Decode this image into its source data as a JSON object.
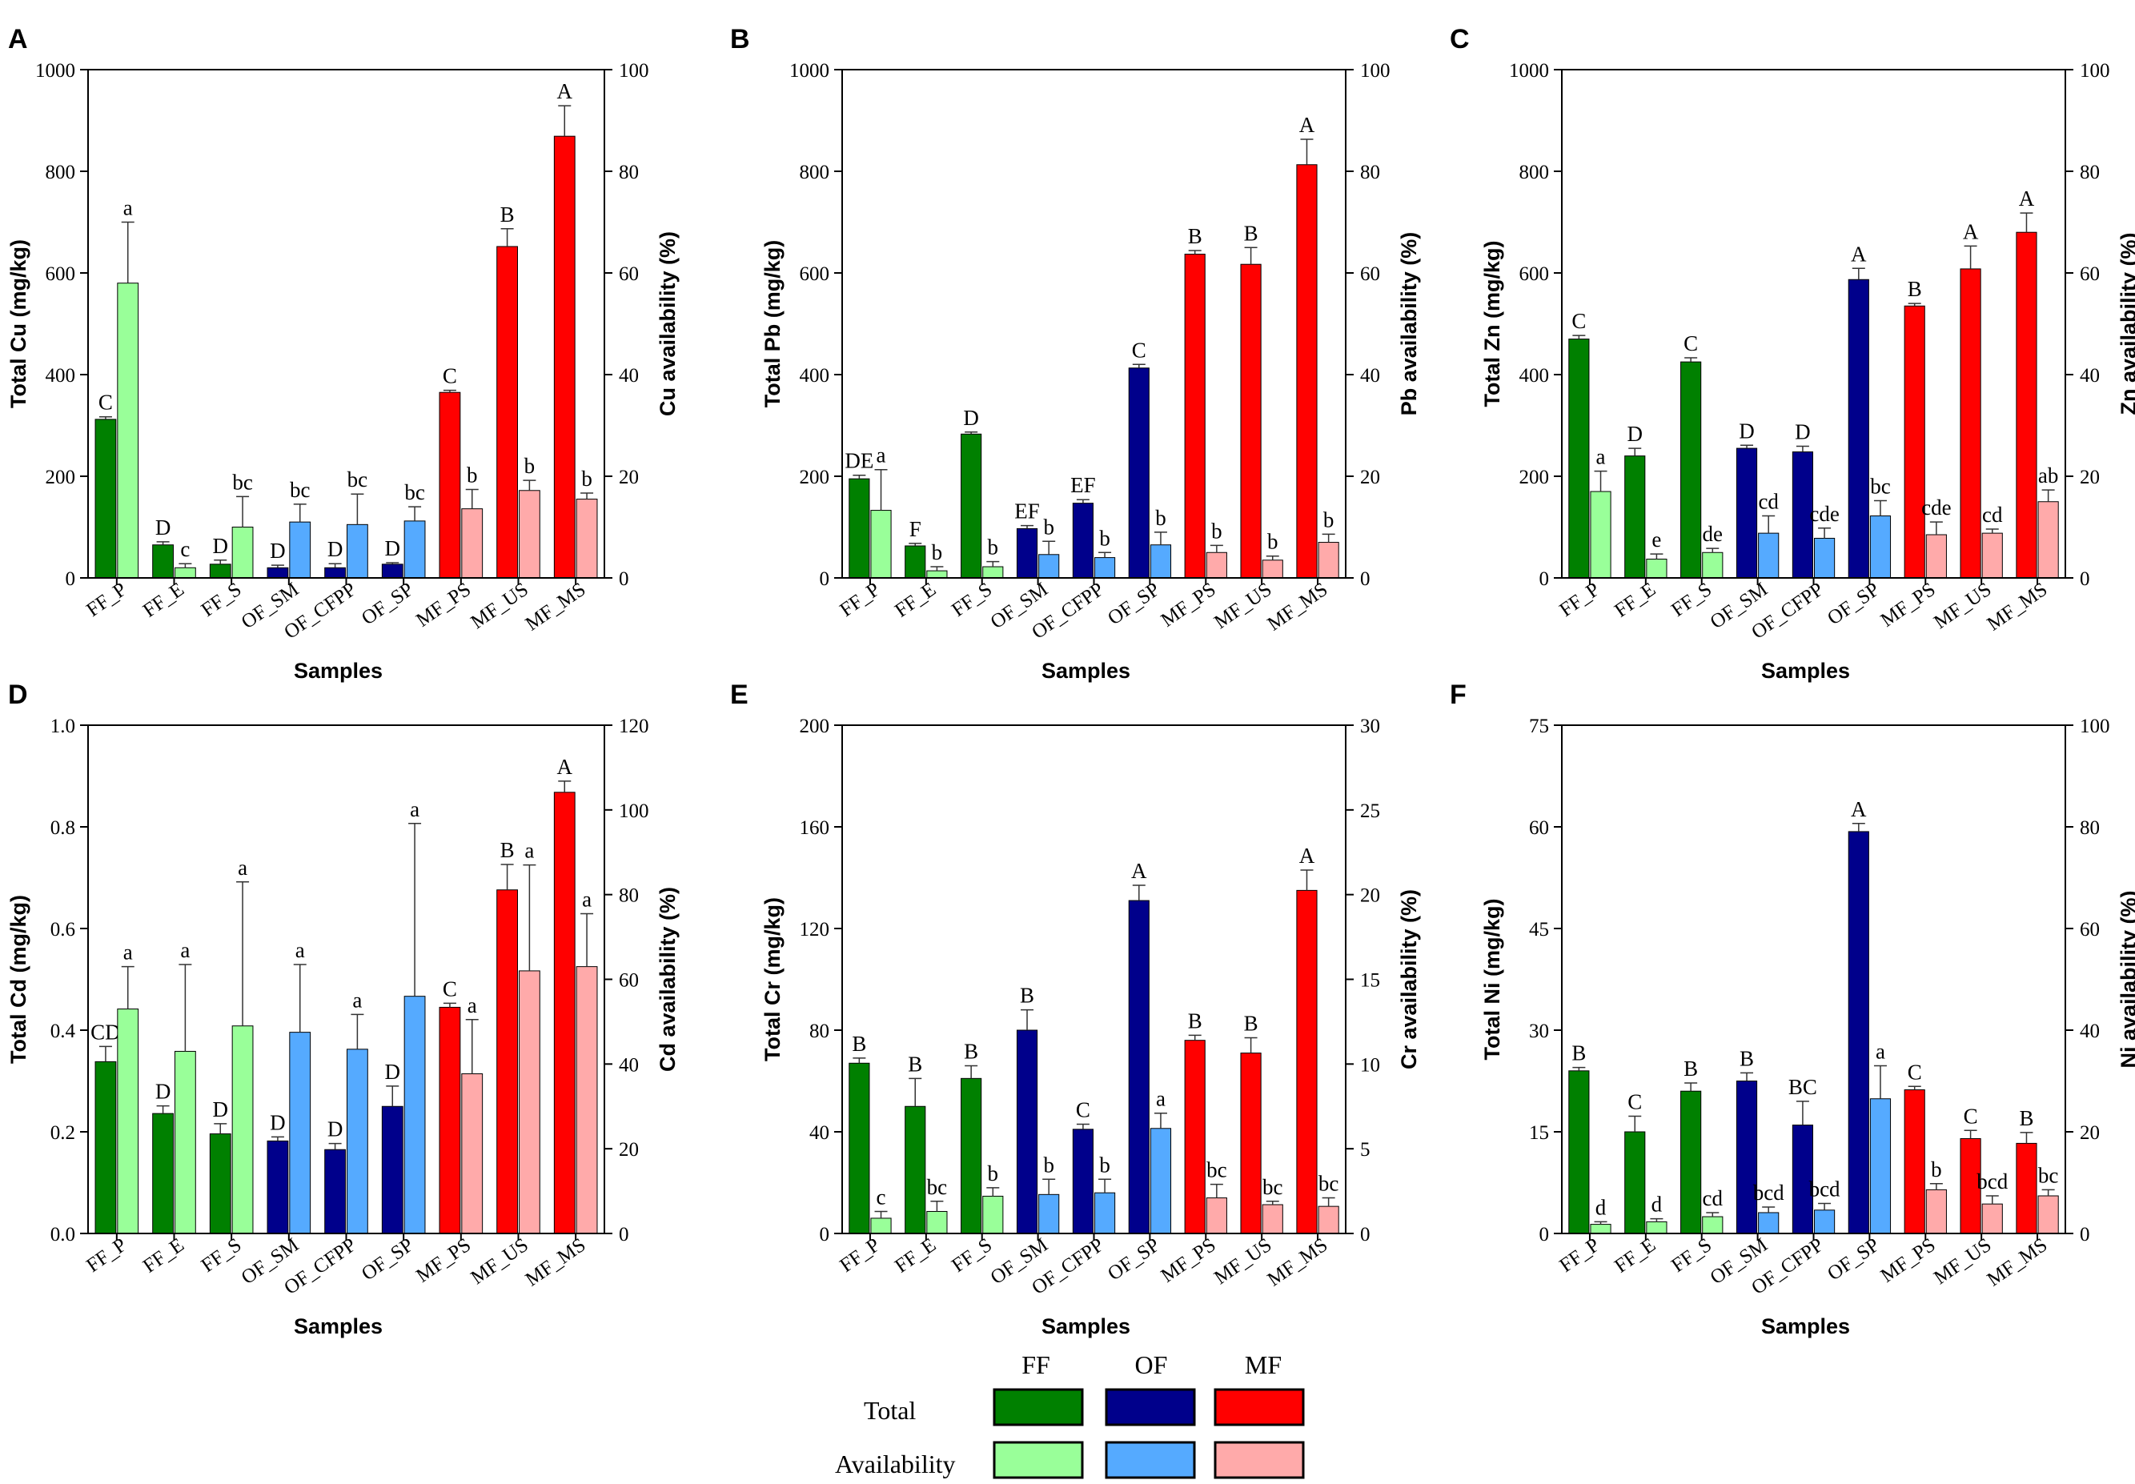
{
  "colors": {
    "FF": {
      "total": "#008000",
      "avail": "#99ff99"
    },
    "OF": {
      "total": "#00008b",
      "avail": "#55aaff"
    },
    "MF": {
      "total": "#ff0000",
      "avail": "#ffaaaa"
    }
  },
  "categories": [
    "FF_P",
    "FF_E",
    "FF_S",
    "OF_SM",
    "OF_CFPP",
    "OF_SP",
    "MF_PS",
    "MF_US",
    "MF_MS"
  ],
  "groups": [
    "FF",
    "FF",
    "FF",
    "OF",
    "OF",
    "OF",
    "MF",
    "MF",
    "MF"
  ],
  "xlabel": "Samples",
  "legend": {
    "columns": [
      "FF",
      "OF",
      "MF"
    ],
    "rows": [
      "Total",
      "Availability"
    ]
  },
  "chart_data": [
    {
      "type": "bar",
      "letter": "A",
      "ylabel_left": "Total Cu (mg/kg)",
      "ylabel_right": "Cu availability (%)",
      "ylim_left": [
        0,
        1000
      ],
      "ylim_right": [
        0,
        100
      ],
      "ticks_left": [
        "0",
        "200",
        "400",
        "600",
        "800",
        "1000"
      ],
      "ticks_right": [
        "0",
        "20",
        "40",
        "60",
        "80",
        "100"
      ],
      "total": [
        312,
        65,
        27,
        20,
        20,
        27,
        365,
        652,
        869
      ],
      "total_err": [
        5,
        6,
        8,
        5,
        8,
        3,
        4,
        35,
        60
      ],
      "total_sig": [
        "C",
        "D",
        "D",
        "D",
        "D",
        "D",
        "C",
        "B",
        "A"
      ],
      "availability": [
        58,
        2,
        10,
        11,
        10.5,
        11.2,
        13.6,
        17.2,
        15.5
      ],
      "availability_err": [
        12,
        0.8,
        6,
        3.5,
        6,
        2.8,
        3.8,
        2,
        1.2
      ],
      "availability_sig": [
        "a",
        "c",
        "bc",
        "bc",
        "bc",
        "bc",
        "b",
        "b",
        "b"
      ]
    },
    {
      "type": "bar",
      "letter": "B",
      "ylabel_left": "Total Pb (mg/kg)",
      "ylabel_right": "Pb availability  (%)",
      "ylim_left": [
        0,
        1000
      ],
      "ylim_right": [
        0,
        100
      ],
      "ticks_left": [
        "0",
        "200",
        "400",
        "600",
        "800",
        "1000"
      ],
      "ticks_right": [
        "0",
        "20",
        "40",
        "60",
        "80",
        "100"
      ],
      "total": [
        195,
        63,
        283,
        97,
        147,
        413,
        637,
        617,
        813
      ],
      "total_err": [
        7,
        5,
        4,
        6,
        7,
        7,
        7,
        33,
        50
      ],
      "total_sig": [
        "DE",
        "F",
        "D",
        "EF",
        "EF",
        "C",
        "B",
        "B",
        "A"
      ],
      "availability": [
        13.3,
        1.4,
        2.2,
        4.6,
        4,
        6.5,
        5,
        3.5,
        7
      ],
      "availability_err": [
        8,
        0.8,
        1,
        2.6,
        1,
        2.5,
        1.4,
        0.8,
        1.6
      ],
      "availability_sig": [
        "a",
        "b",
        "b",
        "b",
        "b",
        "b",
        "b",
        "b",
        "b"
      ]
    },
    {
      "type": "bar",
      "letter": "C",
      "ylabel_left": "Total Zn (mg/kg)",
      "ylabel_right": "Zn availability  (%)",
      "ylim_left": [
        0,
        1000
      ],
      "ylim_right": [
        0,
        100
      ],
      "ticks_left": [
        "0",
        "200",
        "400",
        "600",
        "800",
        "1000"
      ],
      "ticks_right": [
        "0",
        "20",
        "40",
        "60",
        "80",
        "100"
      ],
      "total": [
        470,
        240,
        425,
        255,
        248,
        587,
        535,
        608,
        680
      ],
      "total_err": [
        7,
        15,
        8,
        6,
        11,
        22,
        5,
        45,
        38
      ],
      "total_sig": [
        "C",
        "D",
        "C",
        "D",
        "D",
        "A",
        "B",
        "A",
        "A"
      ],
      "availability": [
        17,
        3.7,
        5,
        8.8,
        7.8,
        12.2,
        8.5,
        8.8,
        15
      ],
      "availability_err": [
        4,
        1,
        0.8,
        3.4,
        2,
        3,
        2.5,
        0.8,
        2.3
      ],
      "availability_sig": [
        "a",
        "e",
        "de",
        "cd",
        "cde",
        "bc",
        "cde",
        "cd",
        "ab"
      ]
    },
    {
      "type": "bar",
      "letter": "D",
      "ylabel_left": "Total Cd (mg/kg)",
      "ylabel_right": "Cd availability  (%)",
      "ylim_left": [
        0,
        1
      ],
      "ylim_right": [
        0,
        120
      ],
      "ticks_left": [
        "0.0",
        "0.2",
        "0.4",
        "0.6",
        "0.8",
        "1.0"
      ],
      "ticks_right": [
        "0",
        "20",
        "40",
        "60",
        "80",
        "100",
        "120"
      ],
      "total": [
        0.338,
        0.236,
        0.196,
        0.182,
        0.165,
        0.25,
        0.445,
        0.676,
        0.868
      ],
      "total_err": [
        0.03,
        0.015,
        0.02,
        0.008,
        0.012,
        0.04,
        0.008,
        0.05,
        0.022
      ],
      "total_sig": [
        "CD",
        "D",
        "D",
        "D",
        "D",
        "D",
        "C",
        "B",
        "A"
      ],
      "availability": [
        53,
        43,
        49,
        47.5,
        43.5,
        56,
        37.7,
        62,
        63
      ],
      "availability_err": [
        10,
        20.5,
        34,
        16,
        8.2,
        40.8,
        12.8,
        25,
        12.5
      ],
      "availability_sig": [
        "a",
        "a",
        "a",
        "a",
        "a",
        "a",
        "a",
        "a",
        "a"
      ]
    },
    {
      "type": "bar",
      "letter": "E",
      "ylabel_left": "Total Cr (mg/kg)",
      "ylabel_right": "Cr availability (%)",
      "ylim_left": [
        0,
        200
      ],
      "ylim_right": [
        0,
        30
      ],
      "ticks_left": [
        "0",
        "40",
        "80",
        "120",
        "160",
        "200"
      ],
      "ticks_right": [
        "0",
        "5",
        "10",
        "15",
        "20",
        "25",
        "30"
      ],
      "total": [
        67,
        50,
        61,
        80,
        41,
        131,
        76,
        71,
        135
      ],
      "total_err": [
        2,
        11,
        5,
        8,
        2,
        6,
        2,
        6,
        8
      ],
      "total_sig": [
        "B",
        "B",
        "B",
        "B",
        "C",
        "A",
        "B",
        "B",
        "A"
      ],
      "availability": [
        0.9,
        1.3,
        2.2,
        2.3,
        2.4,
        6.2,
        2.1,
        1.7,
        1.6
      ],
      "availability_err": [
        0.4,
        0.6,
        0.5,
        0.9,
        0.8,
        0.9,
        0.8,
        0.2,
        0.5
      ],
      "availability_sig": [
        "c",
        "bc",
        "b",
        "b",
        "b",
        "a",
        "bc",
        "bc",
        "bc"
      ]
    },
    {
      "type": "bar",
      "letter": "F",
      "ylabel_left": "Total Ni (mg/kg)",
      "ylabel_right": "Ni availability (%)",
      "ylim_left": [
        0,
        75
      ],
      "ylim_right": [
        0,
        100
      ],
      "ticks_left": [
        "0",
        "15",
        "30",
        "45",
        "60",
        "75"
      ],
      "ticks_right": [
        "0",
        "20",
        "40",
        "60",
        "80",
        "100"
      ],
      "total": [
        24,
        15,
        21,
        22.5,
        16,
        59.3,
        21.2,
        14,
        13.3
      ],
      "total_err": [
        0.5,
        2.3,
        1.2,
        1.2,
        3.5,
        1.2,
        0.5,
        1.2,
        1.6
      ],
      "total_sig": [
        "B",
        "C",
        "B",
        "B",
        "BC",
        "A",
        "C",
        "C",
        "B"
      ],
      "availability": [
        1.8,
        2.3,
        3.3,
        4.1,
        4.6,
        26.5,
        8.6,
        5.8,
        7.4
      ],
      "availability_err": [
        0.5,
        0.6,
        0.8,
        1.1,
        1.3,
        6.5,
        1.2,
        1.6,
        1.2
      ],
      "availability_sig": [
        "d",
        "d",
        "cd",
        "bcd",
        "bcd",
        "a",
        "b",
        "bcd",
        "bc"
      ]
    }
  ]
}
